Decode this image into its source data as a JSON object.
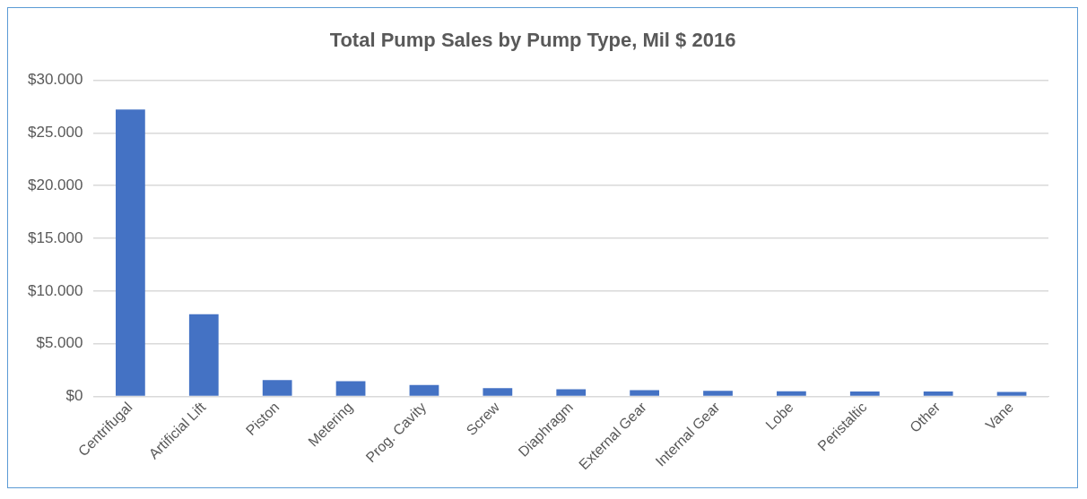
{
  "chart_data": {
    "type": "bar",
    "title": "Total Pump Sales by Pump Type, Mil $ 2016",
    "categories": [
      "Centrifugal",
      "Artificial Lift",
      "Piston",
      "Metering",
      "Prog. Cavity",
      "Screw",
      "Diaphragm",
      "External Gear",
      "Internal Gear",
      "Lobe",
      "Peristaltic",
      "Other",
      "Vane"
    ],
    "values": [
      27200,
      7800,
      1550,
      1450,
      1100,
      800,
      700,
      600,
      550,
      500,
      480,
      480,
      430
    ],
    "color": "#4472c4",
    "ylim": [
      0,
      30000
    ],
    "yticks": [
      {
        "value": 0,
        "label": "$0"
      },
      {
        "value": 5000,
        "label": "$5.000"
      },
      {
        "value": 10000,
        "label": "$10.000"
      },
      {
        "value": 15000,
        "label": "$15.000"
      },
      {
        "value": 20000,
        "label": "$20.000"
      },
      {
        "value": 25000,
        "label": "$25.000"
      },
      {
        "value": 30000,
        "label": "$30.000"
      }
    ],
    "grid": "y"
  }
}
